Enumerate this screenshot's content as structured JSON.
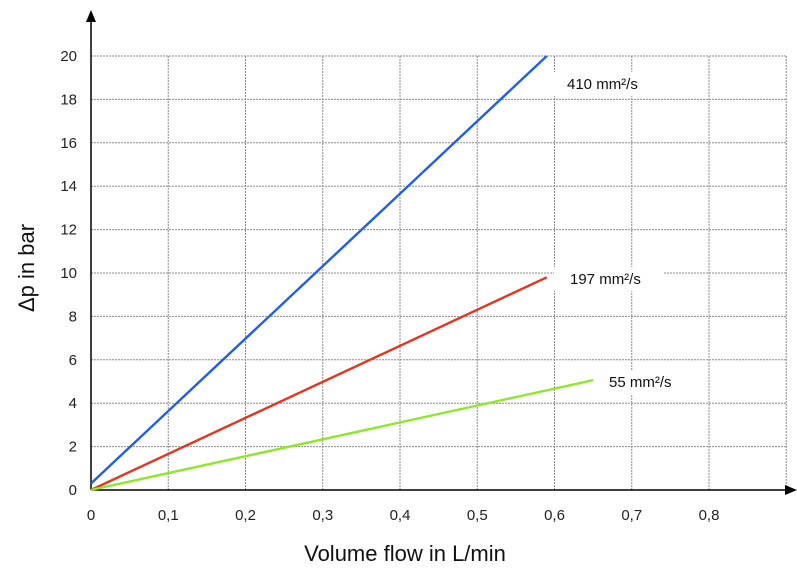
{
  "chart_data": {
    "type": "line",
    "xlabel": "Volume flow in L/min",
    "ylabel": "Δp in bar",
    "xlim": [
      0,
      0.9
    ],
    "ylim": [
      0,
      20
    ],
    "x_ticks": [
      "0",
      "0,1",
      "0,2",
      "0,3",
      "0,4",
      "0,5",
      "0,6",
      "0,7",
      "0,8"
    ],
    "y_ticks": [
      "0",
      "2",
      "4",
      "6",
      "8",
      "10",
      "12",
      "14",
      "16",
      "18",
      "20"
    ],
    "grid": true,
    "series": [
      {
        "name": "410 mm²/s",
        "color": "#1f5fe8",
        "points": [
          [
            0,
            0.3
          ],
          [
            0.59,
            20
          ]
        ]
      },
      {
        "name": "197 mm²/s",
        "color": "#e8341c",
        "points": [
          [
            0,
            0
          ],
          [
            0.59,
            9.8
          ]
        ]
      },
      {
        "name": "55 mm²/s",
        "color": "#8ee82a",
        "points": [
          [
            0,
            0
          ],
          [
            0.655,
            5.1
          ]
        ]
      }
    ]
  }
}
